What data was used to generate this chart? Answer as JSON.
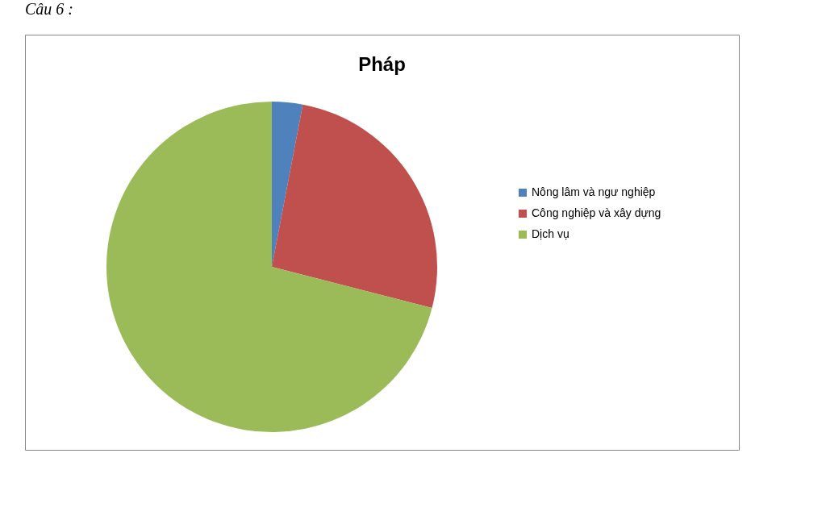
{
  "chart_data": {
    "type": "pie",
    "title": "Pháp",
    "annotations": [
      "Câu 6 :"
    ],
    "categories": [
      "Nông  lâm và  ngư nghiệp",
      "Công nghiệp và xây dựng",
      "Dịch vụ"
    ],
    "values": [
      3,
      26,
      71
    ],
    "colors": [
      "#4f81bd",
      "#c0504d",
      "#9bbb59"
    ],
    "legend": "right"
  }
}
